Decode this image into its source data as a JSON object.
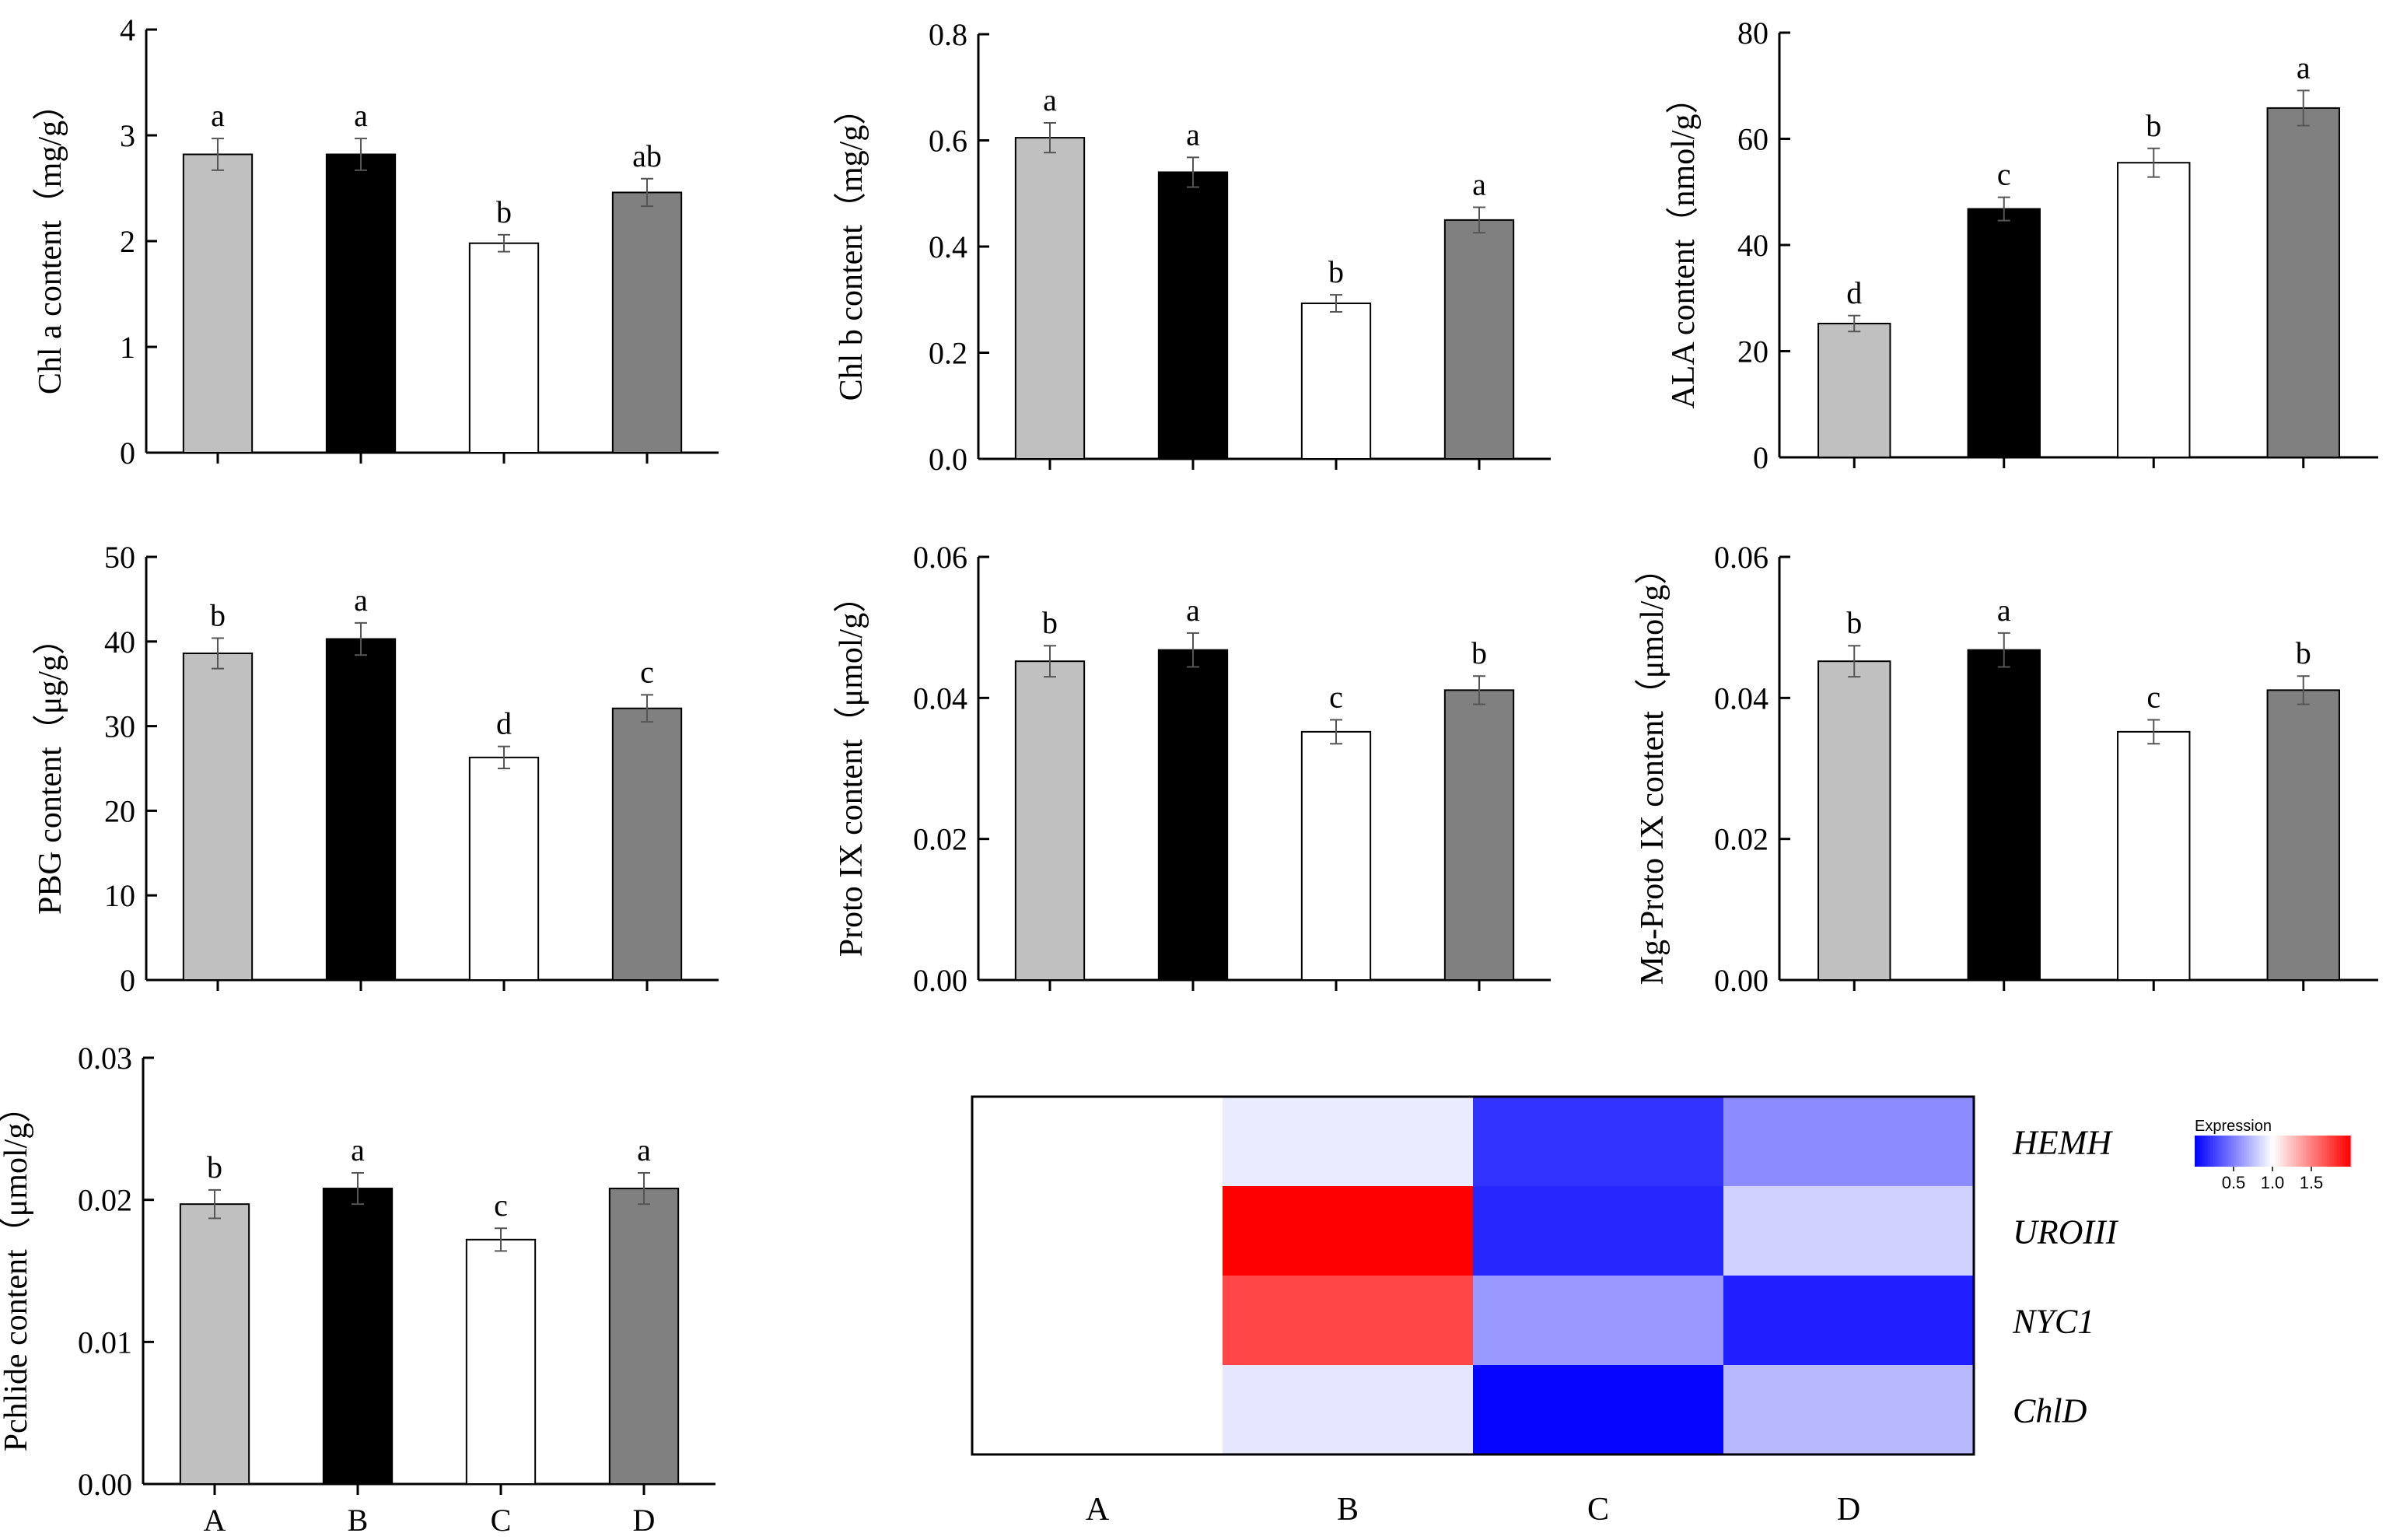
{
  "colors": {
    "A": "#c0c0c0",
    "B": "#000000",
    "C": "#ffffff",
    "D": "#808080",
    "heat_low": "#0000ff",
    "heat_mid": "#ffffff",
    "heat_high": "#ff0000"
  },
  "chart_data": [
    {
      "type": "bar",
      "ylabel": "Chl a content（mg/g）",
      "categories": [
        "A",
        "B",
        "C",
        "D"
      ],
      "values": [
        2.82,
        2.82,
        1.98,
        2.46
      ],
      "errors": [
        0.15,
        0.15,
        0.08,
        0.13
      ],
      "letters": [
        "a",
        "a",
        "b",
        "ab"
      ],
      "ylim": [
        0,
        4
      ],
      "yticks": [
        "0",
        "1",
        "2",
        "3",
        "4"
      ],
      "show_xticklabels": false
    },
    {
      "type": "bar",
      "ylabel": "Chl b content（mg/g）",
      "categories": [
        "A",
        "B",
        "C",
        "D"
      ],
      "values": [
        0.605,
        0.54,
        0.293,
        0.45
      ],
      "errors": [
        0.028,
        0.028,
        0.016,
        0.024
      ],
      "letters": [
        "a",
        "a",
        "b",
        "a"
      ],
      "ylim": [
        0,
        0.8
      ],
      "yticks": [
        "0.0",
        "0.2",
        "0.4",
        "0.6",
        "0.8"
      ],
      "show_xticklabels": false
    },
    {
      "type": "bar",
      "ylabel": "ALA content（nmol/g）",
      "categories": [
        "A",
        "B",
        "C",
        "D"
      ],
      "values": [
        25.2,
        46.8,
        55.5,
        65.8
      ],
      "errors": [
        1.5,
        2.2,
        2.7,
        3.3
      ],
      "letters": [
        "d",
        "c",
        "b",
        "a"
      ],
      "ylim": [
        0,
        80
      ],
      "yticks": [
        "0",
        "20",
        "40",
        "60",
        "80"
      ],
      "show_xticklabels": false
    },
    {
      "type": "bar",
      "ylabel": "PBG content（μg/g）",
      "categories": [
        "A",
        "B",
        "C",
        "D"
      ],
      "values": [
        38.6,
        40.3,
        26.3,
        32.1
      ],
      "errors": [
        1.8,
        1.9,
        1.3,
        1.6
      ],
      "letters": [
        "b",
        "a",
        "d",
        "c"
      ],
      "ylim": [
        0,
        50
      ],
      "yticks": [
        "0",
        "10",
        "20",
        "30",
        "40",
        "50"
      ],
      "show_xticklabels": false
    },
    {
      "type": "bar",
      "ylabel": "Proto IX content（μmol/g）",
      "categories": [
        "A",
        "B",
        "C",
        "D"
      ],
      "values": [
        0.0452,
        0.0468,
        0.0352,
        0.0411
      ],
      "errors": [
        0.0022,
        0.0024,
        0.0017,
        0.002
      ],
      "letters": [
        "b",
        "a",
        "c",
        "b"
      ],
      "ylim": [
        0,
        0.06
      ],
      "yticks": [
        "0.00",
        "0.02",
        "0.04",
        "0.06"
      ],
      "show_xticklabels": false
    },
    {
      "type": "bar",
      "ylabel": "Mg-Proto IX content（μmol/g）",
      "categories": [
        "A",
        "B",
        "C",
        "D"
      ],
      "values": [
        0.0452,
        0.0468,
        0.0352,
        0.0411
      ],
      "errors": [
        0.0022,
        0.0024,
        0.0017,
        0.002
      ],
      "letters": [
        "b",
        "a",
        "c",
        "b"
      ],
      "ylim": [
        0,
        0.06
      ],
      "yticks": [
        "0.00",
        "0.02",
        "0.04",
        "0.06"
      ],
      "show_xticklabels": false
    },
    {
      "type": "bar",
      "ylabel": "Pchlide content（μmol/g）",
      "categories": [
        "A",
        "B",
        "C",
        "D"
      ],
      "values": [
        0.0197,
        0.0208,
        0.0172,
        0.0208
      ],
      "errors": [
        0.001,
        0.0011,
        0.0008,
        0.0011
      ],
      "letters": [
        "b",
        "a",
        "c",
        "a"
      ],
      "ylim": [
        0,
        0.03
      ],
      "yticks": [
        "0.00",
        "0.01",
        "0.02",
        "0.03"
      ],
      "show_xticklabels": true
    },
    {
      "type": "heatmap",
      "columns": [
        "A",
        "B",
        "C",
        "D"
      ],
      "rows": [
        "HEMH",
        "UROIII",
        "NYC1",
        "ChlD"
      ],
      "values": [
        [
          1.0,
          0.92,
          0.2,
          0.55
        ],
        [
          1.0,
          2.0,
          0.15,
          0.82
        ],
        [
          1.0,
          1.72,
          0.6,
          0.12
        ],
        [
          1.0,
          0.9,
          0.02,
          0.72
        ]
      ],
      "legend_title": "Expression",
      "legend_ticks": [
        "0.5",
        "1.0",
        "1.5"
      ],
      "legend_tick_values": [
        0.5,
        1.0,
        1.5
      ],
      "legend_range": [
        0,
        2.0
      ]
    }
  ]
}
